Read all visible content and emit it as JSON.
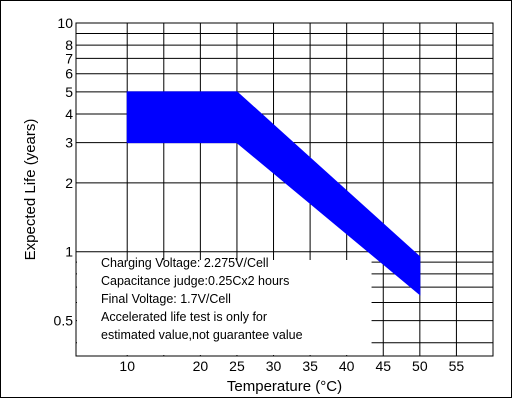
{
  "chart_data": {
    "type": "area",
    "xlabel": "Temperature (°C)",
    "ylabel": "Expected Life (years)",
    "x_ticks": [
      "10",
      "20",
      "25",
      "30",
      "35",
      "40",
      "45",
      "50",
      "55"
    ],
    "y_ticks": [
      "0.5",
      "1",
      "2",
      "3",
      "4",
      "5",
      "6",
      "7",
      "8",
      "10"
    ],
    "xlim": [
      3,
      60
    ],
    "ylim": [
      0.35,
      10
    ],
    "y_scale": "log",
    "grid": true,
    "band_color": "#0000ff",
    "series": [
      {
        "x": [
          10,
          25,
          50
        ],
        "y": [
          5,
          5,
          0.95
        ]
      },
      {
        "x": [
          10,
          25,
          50
        ],
        "y": [
          3,
          3,
          0.65
        ]
      }
    ],
    "annotation_lines": [
      "Charging Voltage: 2.275V/Cell",
      "Capacitance judge:0.25Cx2 hours",
      "Final Voltage: 1.7V/Cell",
      "Accelerated life test is only for",
      "estimated value,not guarantee value"
    ]
  }
}
